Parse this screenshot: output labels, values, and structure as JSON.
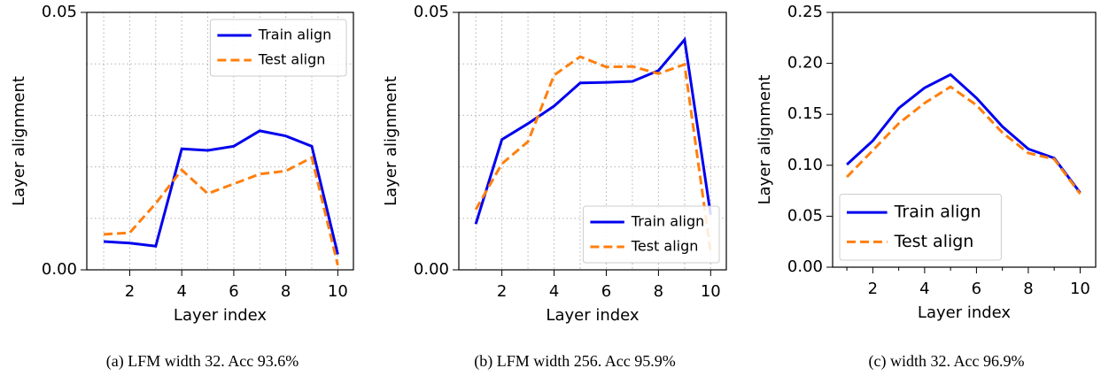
{
  "chart_data": [
    {
      "type": "line",
      "caption": "(a) LFM width 32. Acc 93.6%",
      "x_label": "Layer index",
      "y_label": "Layer alignment",
      "x": [
        1,
        2,
        3,
        4,
        5,
        6,
        7,
        8,
        9,
        10
      ],
      "xlim": [
        0.35,
        10.6
      ],
      "xticks": [
        2,
        4,
        6,
        8,
        10
      ],
      "minor_xticks": [
        1,
        3,
        5,
        7,
        9
      ],
      "ylim": [
        0,
        0.05
      ],
      "yticks": [
        {
          "value": 0,
          "label": "0.00"
        },
        {
          "value": 0.05,
          "label": "0.05"
        }
      ],
      "minor_yticks": [
        0.01,
        0.02,
        0.03,
        0.04
      ],
      "grid": true,
      "legend": "upper right",
      "series": [
        {
          "name": "Train align",
          "color": "#0000ee",
          "style": "solid",
          "values": [
            0.0055,
            0.0052,
            0.0046,
            0.0235,
            0.0232,
            0.024,
            0.027,
            0.026,
            0.024,
            0.003
          ]
        },
        {
          "name": "Test align",
          "color": "#ff7f0e",
          "style": "dashed",
          "values": [
            0.0069,
            0.0072,
            0.0129,
            0.0194,
            0.0148,
            0.0167,
            0.0186,
            0.0192,
            0.0218,
            0.0009
          ]
        }
      ]
    },
    {
      "type": "line",
      "caption": "(b) LFM width 256. Acc 95.9%",
      "x_label": "Layer index",
      "y_label": "Layer alignment",
      "x": [
        1,
        2,
        3,
        4,
        5,
        6,
        7,
        8,
        9,
        10
      ],
      "xlim": [
        0.35,
        10.6
      ],
      "xticks": [
        2,
        4,
        6,
        8,
        10
      ],
      "minor_xticks": [
        1,
        3,
        5,
        7,
        9
      ],
      "ylim": [
        0,
        0.05
      ],
      "yticks": [
        {
          "value": 0,
          "label": "0.00"
        },
        {
          "value": 0.05,
          "label": "0.05"
        }
      ],
      "minor_yticks": [
        0.01,
        0.02,
        0.03,
        0.04
      ],
      "grid": true,
      "legend": "lower right",
      "series": [
        {
          "name": "Train align",
          "color": "#0000ee",
          "style": "solid",
          "values": [
            0.0089,
            0.0253,
            0.0284,
            0.0318,
            0.0363,
            0.0364,
            0.0366,
            0.0387,
            0.0447,
            0.0107
          ]
        },
        {
          "name": "Test align",
          "color": "#ff7f0e",
          "style": "dashed",
          "values": [
            0.0117,
            0.0206,
            0.0249,
            0.0378,
            0.0414,
            0.0394,
            0.0395,
            0.0381,
            0.0399,
            0.0034
          ]
        }
      ]
    },
    {
      "type": "line",
      "caption": "(c) width 32. Acc 96.9%",
      "x_label": "Layer index",
      "y_label": "Layer alignment",
      "x": [
        1,
        2,
        3,
        4,
        5,
        6,
        7,
        8,
        9,
        10
      ],
      "xlim": [
        0.45,
        10.6
      ],
      "xticks": [
        2,
        4,
        6,
        8,
        10
      ],
      "minor_xticks": [
        1,
        3,
        5,
        7,
        9
      ],
      "ylim": [
        0,
        0.25
      ],
      "yticks": [
        {
          "value": 0,
          "label": "0.00"
        },
        {
          "value": 0.05,
          "label": "0.05"
        },
        {
          "value": 0.1,
          "label": "0.10"
        },
        {
          "value": 0.15,
          "label": "0.15"
        },
        {
          "value": 0.2,
          "label": "0.20"
        },
        {
          "value": 0.25,
          "label": "0.25"
        }
      ],
      "minor_yticks": [],
      "grid": false,
      "legend": "lower left",
      "series": [
        {
          "name": "Train align",
          "color": "#0000ee",
          "style": "solid",
          "values": [
            0.1007,
            0.124,
            0.156,
            0.176,
            0.189,
            0.166,
            0.138,
            0.116,
            0.107,
            0.073
          ]
        },
        {
          "name": "Test align",
          "color": "#ff7f0e",
          "style": "dashed",
          "values": [
            0.0885,
            0.1146,
            0.141,
            0.161,
            0.177,
            0.159,
            0.132,
            0.112,
            0.106,
            0.072
          ]
        }
      ]
    }
  ]
}
